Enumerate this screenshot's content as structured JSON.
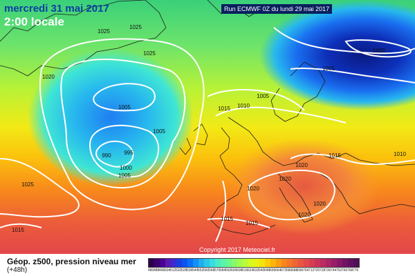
{
  "header": {
    "date": "mercredi 31 mai 2017",
    "time": "2:00 locale",
    "run": "Run ECMWF 0Z du lundi 29 mai 2017"
  },
  "copyright": "Copyright 2017 Meteociel.fr",
  "legend": {
    "title": "Géop. z500, pression niveau mer",
    "subtitle": "(+48h)",
    "colors": [
      "#2a004a",
      "#3a006e",
      "#4a0094",
      "#5a1ab0",
      "#3b2bd0",
      "#1a3fe0",
      "#0a55f0",
      "#0a70f5",
      "#1390f5",
      "#20aef0",
      "#2ac7ea",
      "#36dde0",
      "#4aecc8",
      "#5af5a8",
      "#6cf88a",
      "#86fa6a",
      "#a2fb4e",
      "#bdfb36",
      "#d6f922",
      "#eaf212",
      "#f7e20c",
      "#fccc0a",
      "#fdb40c",
      "#fb9c12",
      "#f8861c",
      "#f47428",
      "#ef6434",
      "#e95540",
      "#e0484a",
      "#d63d52",
      "#c9335a",
      "#bb2a60",
      "#ab2364",
      "#981d66",
      "#851866",
      "#721463",
      "#60115e",
      "#4f0e57"
    ],
    "labels": [
      "480",
      "488",
      "496",
      "504",
      "512",
      "520",
      "528",
      "536",
      "544",
      "552",
      "560",
      "568",
      "576",
      "584",
      "592",
      "600",
      "608",
      "616",
      "624",
      "632",
      "640",
      "648",
      "656",
      "664",
      "672",
      "680",
      "688",
      "696",
      "704",
      "712",
      "720",
      "728",
      "736",
      "744",
      "752",
      "760",
      "768",
      "776"
    ]
  },
  "isobars": [
    {
      "value": "1025",
      "label_pos": [
        150,
        48
      ]
    },
    {
      "value": "1025",
      "label_pos": [
        196,
        42
      ]
    },
    {
      "value": "1025",
      "label_pos": [
        216,
        80
      ]
    },
    {
      "value": "1020",
      "label_pos": [
        70,
        114
      ]
    },
    {
      "value": "1005",
      "label_pos": [
        180,
        158
      ]
    },
    {
      "value": "1005",
      "label_pos": [
        230,
        193
      ]
    },
    {
      "value": "990",
      "label_pos": [
        154,
        228
      ]
    },
    {
      "value": "995",
      "label_pos": [
        186,
        224
      ]
    },
    {
      "value": "1000",
      "label_pos": [
        182,
        246
      ]
    },
    {
      "value": "1005",
      "label_pos": [
        180,
        257
      ]
    },
    {
      "value": "1025",
      "label_pos": [
        40,
        270
      ]
    },
    {
      "value": "1015",
      "label_pos": [
        324,
        160
      ]
    },
    {
      "value": "1010",
      "label_pos": [
        352,
        156
      ]
    },
    {
      "value": "1005",
      "label_pos": [
        380,
        142
      ]
    },
    {
      "value": "1005",
      "label_pos": [
        475,
        102
      ]
    },
    {
      "value": "1000",
      "label_pos": [
        548,
        76
      ]
    },
    {
      "value": "1015",
      "label_pos": [
        484,
        228
      ]
    },
    {
      "value": "1010",
      "label_pos": [
        578,
        226
      ]
    },
    {
      "value": "1020",
      "label_pos": [
        436,
        242
      ]
    },
    {
      "value": "1020",
      "label_pos": [
        412,
        262
      ]
    },
    {
      "value": "1020",
      "label_pos": [
        366,
        276
      ]
    },
    {
      "value": "1020",
      "label_pos": [
        462,
        298
      ]
    },
    {
      "value": "1020",
      "label_pos": [
        440,
        314
      ]
    },
    {
      "value": "1015",
      "label_pos": [
        328,
        320
      ]
    },
    {
      "value": "1015",
      "label_pos": [
        364,
        326
      ]
    },
    {
      "value": "1015",
      "label_pos": [
        26,
        336
      ]
    }
  ]
}
